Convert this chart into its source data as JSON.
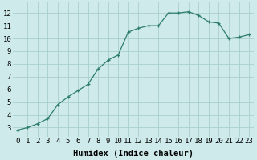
{
  "x": [
    0,
    1,
    2,
    3,
    4,
    5,
    6,
    7,
    8,
    9,
    10,
    11,
    12,
    13,
    14,
    15,
    16,
    17,
    18,
    19,
    20,
    21,
    22,
    23
  ],
  "y": [
    2.8,
    3.0,
    3.3,
    3.7,
    4.8,
    5.4,
    5.9,
    6.4,
    7.6,
    8.3,
    8.7,
    10.5,
    10.8,
    11.0,
    11.0,
    12.0,
    12.0,
    12.1,
    11.8,
    11.3,
    11.2,
    10.0,
    10.1,
    10.3
  ],
  "line_color": "#2e7d6e",
  "marker": "+",
  "xlabel": "Humidex (Indice chaleur)",
  "xlim": [
    -0.5,
    23.5
  ],
  "ylim": [
    2.3,
    12.8
  ],
  "yticks": [
    3,
    4,
    5,
    6,
    7,
    8,
    9,
    10,
    11,
    12
  ],
  "xticks": [
    0,
    1,
    2,
    3,
    4,
    5,
    6,
    7,
    8,
    9,
    10,
    11,
    12,
    13,
    14,
    15,
    16,
    17,
    18,
    19,
    20,
    21,
    22,
    23
  ],
  "bg_color": "#ceeaea",
  "grid_color": "#aacece",
  "font_size": 6.5,
  "xlabel_fontsize": 7.5,
  "line_width": 0.9,
  "marker_size": 3.5,
  "marker_edge_width": 0.9
}
